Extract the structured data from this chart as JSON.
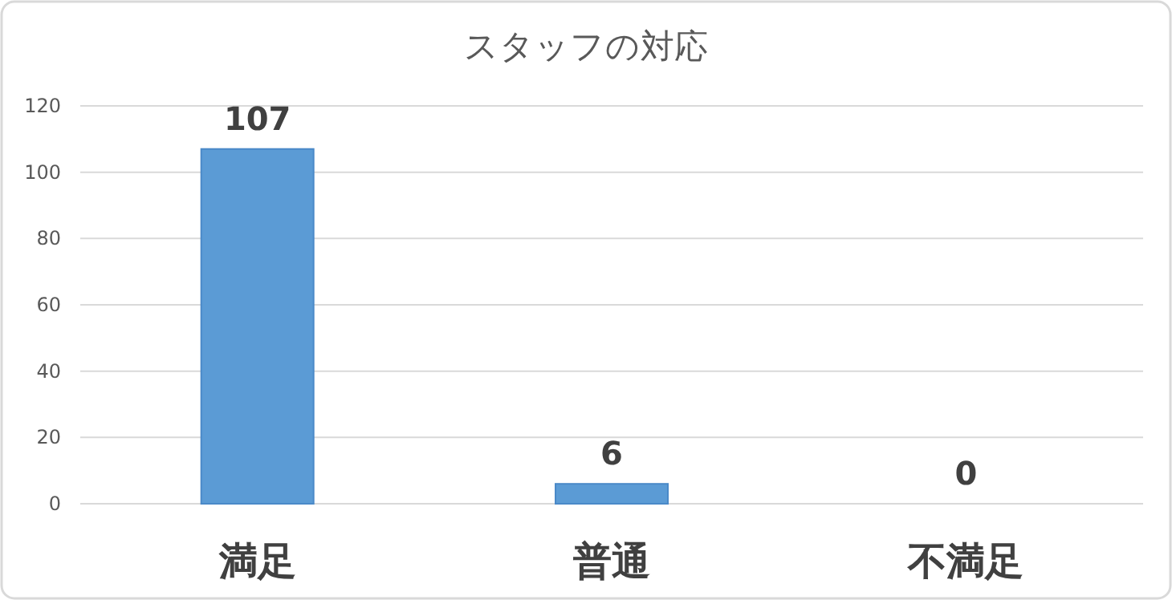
{
  "chart_data": {
    "type": "bar",
    "title": "スタッフの対応",
    "categories": [
      "満足",
      "普通",
      "不満足"
    ],
    "values": [
      107,
      6,
      0
    ],
    "color": "#5b9bd5",
    "ylim": [
      0,
      120
    ],
    "yticks": [
      0,
      20,
      40,
      60,
      80,
      100,
      120
    ],
    "grid": "y",
    "data_labels": true
  }
}
